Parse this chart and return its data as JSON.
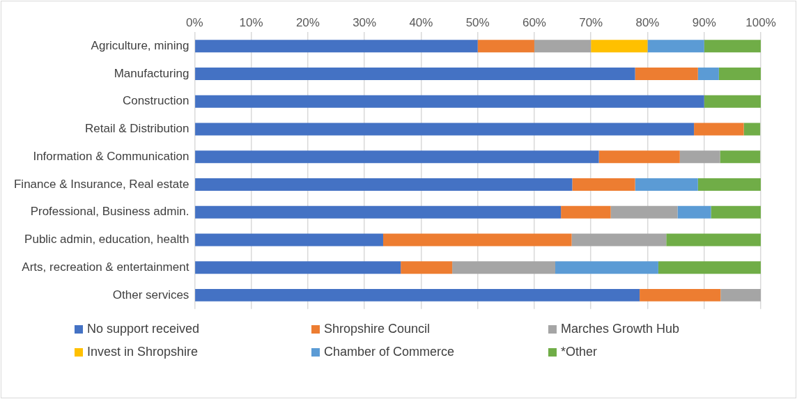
{
  "chart_data": {
    "type": "bar",
    "orientation": "horizontal",
    "stacked": true,
    "categories": [
      "Agriculture, mining",
      "Manufacturing",
      "Construction",
      "Retail & Distribution",
      "Information & Communication",
      "Finance & Insurance, Real estate",
      "Professional, Business admin.",
      "Public admin, education, health",
      "Arts, recreation & entertainment",
      "Other services"
    ],
    "series": [
      {
        "name": "No support received",
        "color": "#4472c4",
        "values": [
          50,
          77.8,
          90,
          88.2,
          71.4,
          66.7,
          64.7,
          33.3,
          36.4,
          78.6
        ]
      },
      {
        "name": "Shropshire Council",
        "color": "#ed7d31",
        "values": [
          10,
          11.1,
          0,
          8.8,
          14.3,
          11.1,
          8.8,
          33.3,
          9.1,
          14.3
        ]
      },
      {
        "name": "Marches Growth Hub",
        "color": "#a5a5a5",
        "values": [
          10,
          0,
          0,
          0,
          7.1,
          0,
          11.8,
          16.7,
          18.2,
          7.1
        ]
      },
      {
        "name": "Invest in Shropshire",
        "color": "#ffc000",
        "values": [
          10,
          0,
          0,
          0,
          0,
          0,
          0,
          0,
          0,
          0
        ]
      },
      {
        "name": "Chamber of Commerce",
        "color": "#5b9bd5",
        "values": [
          10,
          3.7,
          0,
          0,
          0,
          11.1,
          5.9,
          0,
          18.2,
          0
        ]
      },
      {
        "name": "*Other",
        "color": "#70ad47",
        "values": [
          10,
          7.4,
          10,
          2.9,
          7.1,
          11.1,
          8.8,
          16.7,
          18.2,
          0
        ]
      }
    ],
    "xlim": [
      0,
      100
    ],
    "xticks": [
      {
        "value": 0,
        "label": "0%"
      },
      {
        "value": 10,
        "label": "10%"
      },
      {
        "value": 20,
        "label": "20%"
      },
      {
        "value": 30,
        "label": "30%"
      },
      {
        "value": 40,
        "label": "40%"
      },
      {
        "value": 50,
        "label": "50%"
      },
      {
        "value": 60,
        "label": "60%"
      },
      {
        "value": 70,
        "label": "70%"
      },
      {
        "value": 80,
        "label": "80%"
      },
      {
        "value": 90,
        "label": "90%"
      },
      {
        "value": 100,
        "label": "100%"
      }
    ],
    "grid": "x",
    "legend": "bottom"
  }
}
